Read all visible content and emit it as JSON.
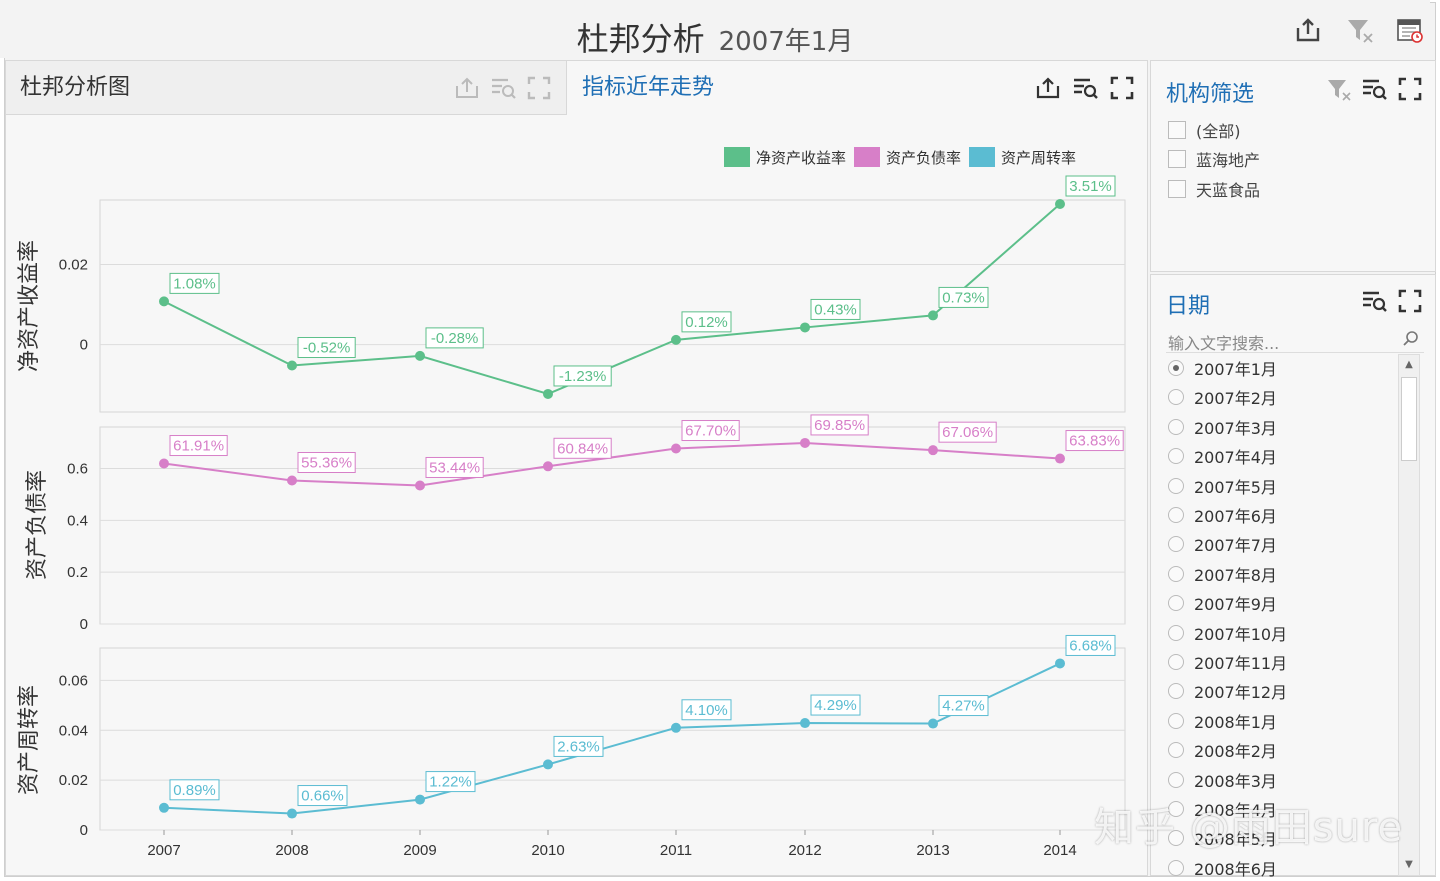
{
  "header": {
    "title": "杜邦分析",
    "subtitle": "2007年1月",
    "icons": [
      "export-icon",
      "clear-filter-icon",
      "calendar-icon"
    ]
  },
  "tabs": {
    "dupont_chart": "杜邦分析图",
    "trend": "指标近年走势"
  },
  "org_filter": {
    "title": "机构筛选",
    "items": [
      "(全部)",
      "蓝海地产",
      "天蓝食品"
    ]
  },
  "date_filter": {
    "title": "日期",
    "search_placeholder": "输入文字搜索...",
    "selected": "2007年1月",
    "items": [
      "2007年1月",
      "2007年2月",
      "2007年3月",
      "2007年4月",
      "2007年5月",
      "2007年6月",
      "2007年7月",
      "2007年8月",
      "2007年9月",
      "2007年10月",
      "2007年11月",
      "2007年12月",
      "2008年1月",
      "2008年2月",
      "2008年3月",
      "2008年4月",
      "2008年5月",
      "2008年6月"
    ]
  },
  "watermark": "知乎 @雨田sure",
  "chart_data": {
    "type": "line",
    "x": [
      "2007",
      "2008",
      "2009",
      "2010",
      "2011",
      "2012",
      "2013",
      "2014"
    ],
    "legend_position": "top-right",
    "grid": true,
    "series": [
      {
        "name": "净资产收益率",
        "ylabel": "净资产收益率",
        "color": "#5cbf8a",
        "values": [
          0.0108,
          -0.0052,
          -0.0028,
          -0.0123,
          0.0012,
          0.0043,
          0.0073,
          0.0351
        ],
        "labels": [
          "1.08%",
          "-0.52%",
          "-0.28%",
          "-1.23%",
          "0.12%",
          "0.43%",
          "0.73%",
          "3.51%"
        ],
        "yticks": [
          {
            "v": 0,
            "t": "0"
          },
          {
            "v": 0.02,
            "t": "0.02"
          }
        ],
        "ylim": [
          -0.0168,
          0.0361
        ]
      },
      {
        "name": "资产负债率",
        "ylabel": "资产负债率",
        "color": "#d77fc8",
        "values": [
          0.6191,
          0.5536,
          0.5344,
          0.6084,
          0.677,
          0.6985,
          0.6706,
          0.6383
        ],
        "labels": [
          "61.91%",
          "55.36%",
          "53.44%",
          "60.84%",
          "67.70%",
          "69.85%",
          "67.06%",
          "63.83%"
        ],
        "yticks": [
          {
            "v": 0,
            "t": "0"
          },
          {
            "v": 0.2,
            "t": "0.2"
          },
          {
            "v": 0.4,
            "t": "0.4"
          },
          {
            "v": 0.6,
            "t": "0.6"
          }
        ],
        "ylim": [
          0,
          0.76
        ]
      },
      {
        "name": "资产周转率",
        "ylabel": "资产周转率",
        "color": "#5bbcd2",
        "values": [
          0.0089,
          0.0066,
          0.0122,
          0.0263,
          0.041,
          0.0429,
          0.0427,
          0.0668
        ],
        "labels": [
          "0.89%",
          "0.66%",
          "1.22%",
          "2.63%",
          "4.10%",
          "4.29%",
          "4.27%",
          "6.68%"
        ],
        "yticks": [
          {
            "v": 0,
            "t": "0"
          },
          {
            "v": 0.02,
            "t": "0.02"
          },
          {
            "v": 0.04,
            "t": "0.04"
          },
          {
            "v": 0.06,
            "t": "0.06"
          }
        ],
        "ylim": [
          0,
          0.073
        ]
      }
    ]
  }
}
